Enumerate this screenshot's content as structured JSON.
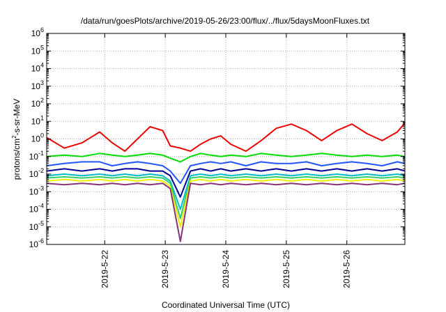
{
  "chart_data": {
    "type": "line",
    "title": "/data/run/goesPlots/archive/2019-05-26/23:00/flux/../flux/5daysMoonFluxes.txt",
    "xlabel": "Coordinated Universal Time (UTC)",
    "ylabel": "protons/cm2-s-sr-MeV",
    "ylabel_parts": {
      "before": "protons/cm",
      "sup": "2",
      "after": "-s-sr-MeV"
    },
    "y_scale": "log",
    "ylim": [
      1e-06,
      1000000.0
    ],
    "y_ticks": [
      {
        "exp": 6,
        "mantissa": "10",
        "sup": "6"
      },
      {
        "exp": 5,
        "mantissa": "10",
        "sup": "5"
      },
      {
        "exp": 4,
        "mantissa": "10",
        "sup": "4"
      },
      {
        "exp": 3,
        "mantissa": "10",
        "sup": "3"
      },
      {
        "exp": 2,
        "mantissa": "10",
        "sup": "2"
      },
      {
        "exp": 1,
        "mantissa": "10",
        "sup": "1"
      },
      {
        "exp": 0,
        "mantissa": "10",
        "sup": "0"
      },
      {
        "exp": -1,
        "mantissa": "10",
        "sup": "-1"
      },
      {
        "exp": -2,
        "mantissa": "10",
        "sup": "-2"
      },
      {
        "exp": -3,
        "mantissa": "10",
        "sup": "-3"
      },
      {
        "exp": -4,
        "mantissa": "10",
        "sup": "-4"
      },
      {
        "exp": -5,
        "mantissa": "10",
        "sup": "-5"
      },
      {
        "exp": -6,
        "mantissa": "10",
        "sup": "-6"
      }
    ],
    "xlim": [
      "2019-05-21 01:00",
      "2019-05-26 23:00"
    ],
    "x_ticks": [
      {
        "label": "2019-5-22",
        "time": "2019-05-22 00:00"
      },
      {
        "label": "2019-5-23",
        "time": "2019-05-23 00:00"
      },
      {
        "label": "2019-5-24",
        "time": "2019-05-24 00:00"
      },
      {
        "label": "2019-5-25",
        "time": "2019-05-25 00:00"
      },
      {
        "label": "2019-5-26",
        "time": "2019-05-26 00:00"
      }
    ],
    "grid": true,
    "legend": "none",
    "x_sample_times": [
      "2019-05-21 01:00",
      "2019-05-21 08:00",
      "2019-05-21 15:00",
      "2019-05-21 22:00",
      "2019-05-22 03:00",
      "2019-05-22 08:00",
      "2019-05-22 13:00",
      "2019-05-22 18:00",
      "2019-05-22 23:00",
      "2019-05-23 02:00",
      "2019-05-23 06:00",
      "2019-05-23 10:00",
      "2019-05-23 14:00",
      "2019-05-23 18:00",
      "2019-05-23 22:00",
      "2019-05-24 02:00",
      "2019-05-24 08:00",
      "2019-05-24 14:00",
      "2019-05-24 20:00",
      "2019-05-25 02:00",
      "2019-05-25 08:00",
      "2019-05-25 14:00",
      "2019-05-25 20:00",
      "2019-05-26 02:00",
      "2019-05-26 08:00",
      "2019-05-26 14:00",
      "2019-05-26 20:00",
      "2019-05-26 23:00"
    ],
    "series": [
      {
        "color": "#ee0000",
        "values": [
          1.2,
          0.3,
          0.6,
          2.5,
          0.6,
          0.2,
          1.0,
          5.0,
          3.0,
          0.4,
          0.3,
          0.2,
          0.5,
          1.0,
          1.5,
          0.5,
          0.2,
          0.8,
          4.0,
          7.0,
          3.0,
          0.8,
          3.0,
          7.0,
          2.0,
          0.8,
          2.5,
          8.0
        ]
      },
      {
        "color": "#00dd00",
        "values": [
          0.1,
          0.12,
          0.1,
          0.15,
          0.12,
          0.1,
          0.12,
          0.15,
          0.12,
          0.08,
          0.05,
          0.1,
          0.15,
          0.12,
          0.1,
          0.12,
          0.1,
          0.15,
          0.12,
          0.1,
          0.12,
          0.15,
          0.12,
          0.1,
          0.12,
          0.1,
          0.12,
          0.1
        ]
      },
      {
        "color": "#2255ff",
        "values": [
          0.03,
          0.04,
          0.05,
          0.05,
          0.03,
          0.04,
          0.05,
          0.04,
          0.03,
          0.015,
          0.003,
          0.03,
          0.04,
          0.05,
          0.04,
          0.05,
          0.03,
          0.05,
          0.04,
          0.04,
          0.05,
          0.03,
          0.04,
          0.05,
          0.04,
          0.03,
          0.05,
          0.04
        ]
      },
      {
        "color": "#000099",
        "values": [
          0.015,
          0.02,
          0.015,
          0.02,
          0.015,
          0.02,
          0.02,
          0.015,
          0.015,
          0.008,
          0.0005,
          0.015,
          0.02,
          0.015,
          0.02,
          0.015,
          0.02,
          0.015,
          0.02,
          0.015,
          0.02,
          0.015,
          0.02,
          0.015,
          0.02,
          0.015,
          0.02,
          0.015
        ]
      },
      {
        "color": "#00bbcc",
        "values": [
          0.008,
          0.01,
          0.008,
          0.01,
          0.008,
          0.01,
          0.008,
          0.01,
          0.008,
          0.004,
          0.0001,
          0.008,
          0.01,
          0.008,
          0.01,
          0.008,
          0.01,
          0.008,
          0.01,
          0.008,
          0.01,
          0.008,
          0.01,
          0.008,
          0.01,
          0.008,
          0.01,
          0.008
        ]
      },
      {
        "color": "#33cc66",
        "values": [
          0.006,
          0.007,
          0.006,
          0.007,
          0.006,
          0.007,
          0.006,
          0.007,
          0.006,
          0.003,
          3e-05,
          0.006,
          0.007,
          0.006,
          0.007,
          0.006,
          0.007,
          0.006,
          0.007,
          0.006,
          0.007,
          0.006,
          0.007,
          0.006,
          0.007,
          0.006,
          0.007,
          0.006
        ]
      },
      {
        "color": "#eeee00",
        "values": [
          0.004,
          0.005,
          0.004,
          0.005,
          0.004,
          0.005,
          0.004,
          0.005,
          0.004,
          0.002,
          1e-05,
          0.004,
          0.005,
          0.004,
          0.005,
          0.004,
          0.005,
          0.004,
          0.005,
          0.004,
          0.005,
          0.004,
          0.005,
          0.004,
          0.005,
          0.004,
          0.005,
          0.004
        ]
      },
      {
        "color": "#883377",
        "values": [
          0.003,
          0.0025,
          0.003,
          0.0025,
          0.003,
          0.0025,
          0.003,
          0.0025,
          0.003,
          0.0015,
          1.5e-06,
          0.003,
          0.0025,
          0.003,
          0.0025,
          0.003,
          0.0025,
          0.003,
          0.0025,
          0.003,
          0.0025,
          0.003,
          0.0025,
          0.003,
          0.0025,
          0.003,
          0.0025,
          0.003
        ]
      }
    ]
  }
}
